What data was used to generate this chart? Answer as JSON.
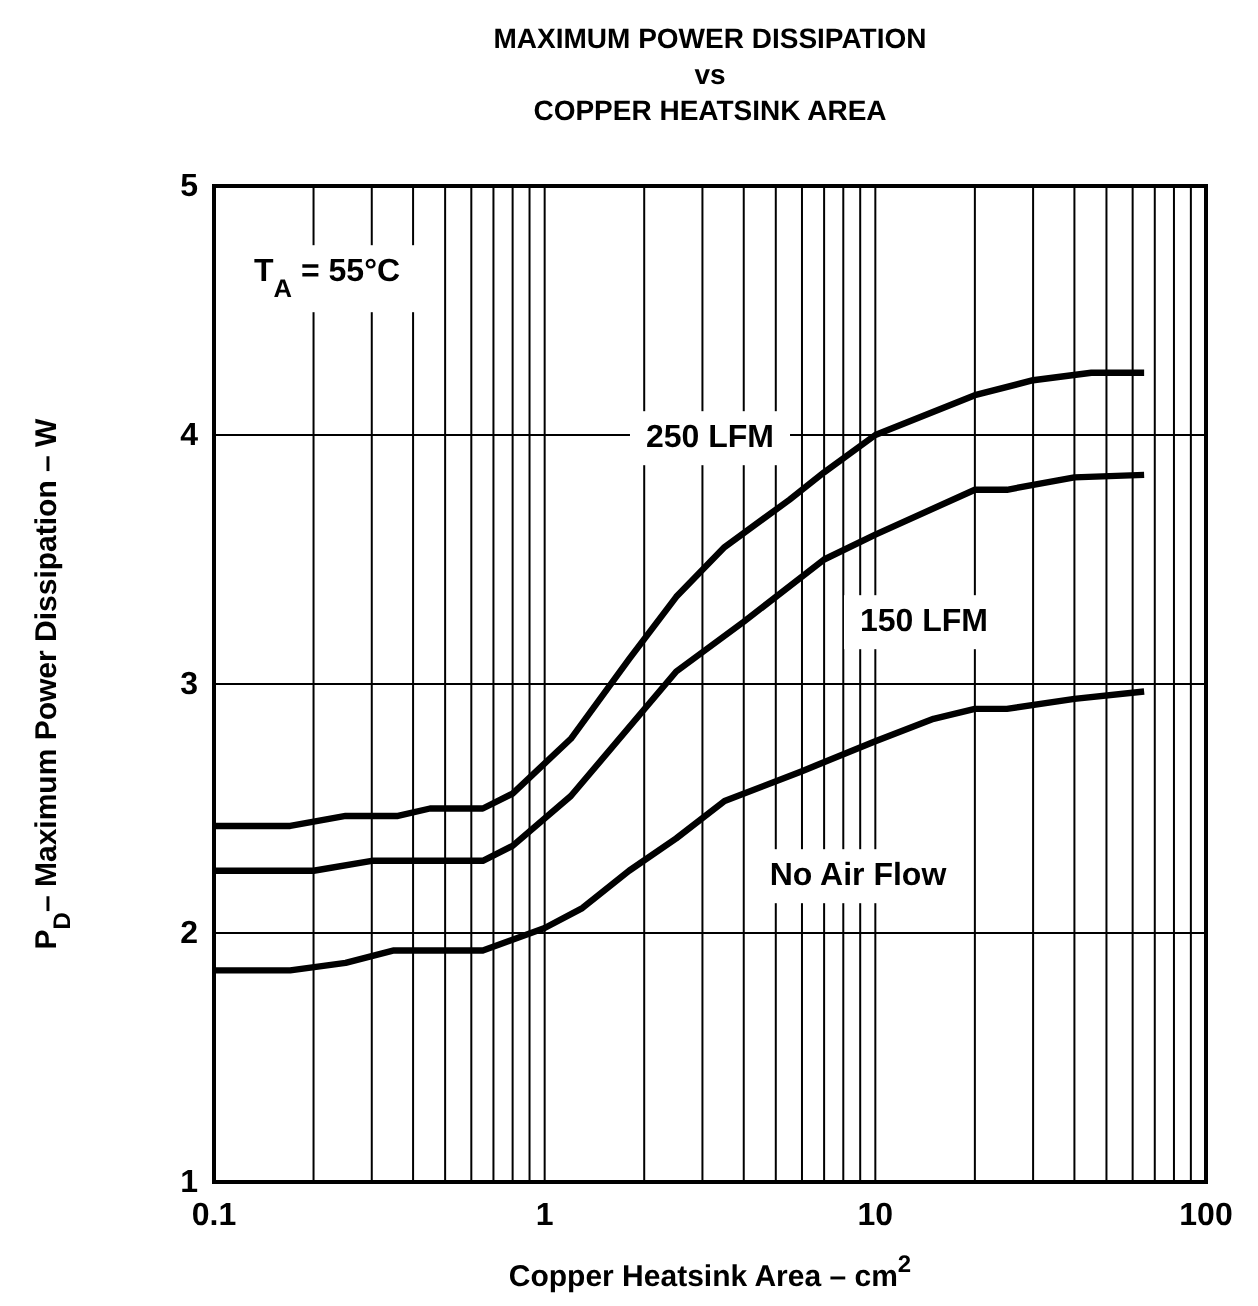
{
  "chart_data": {
    "type": "line",
    "title": "MAXIMUM POWER DISSIPATION\nvs\nCOPPER HEATSINK AREA",
    "xlabel": "Copper Heatsink Area – cm$^{2}$",
    "ylabel": "P$_{D}$– Maximum Power Dissipation – W",
    "log": "x",
    "grid": true,
    "marker": "none",
    "line_style": "solid",
    "xlim": [
      0.1,
      100
    ],
    "ylim": [
      1,
      5
    ],
    "xticks": [
      0.1,
      {
        "value": 0.2,
        "label": null
      },
      {
        "value": 0.3,
        "label": null
      },
      {
        "value": 0.4,
        "label": null
      },
      {
        "value": 0.5,
        "label": null
      },
      {
        "value": 0.6,
        "label": null
      },
      {
        "value": 0.7,
        "label": null
      },
      {
        "value": 0.8,
        "label": null
      },
      {
        "value": 0.9,
        "label": null
      },
      1,
      {
        "value": 2,
        "label": null
      },
      {
        "value": 3,
        "label": null
      },
      {
        "value": 4,
        "label": null
      },
      {
        "value": 5,
        "label": null
      },
      {
        "value": 6,
        "label": null
      },
      {
        "value": 7,
        "label": null
      },
      {
        "value": 8,
        "label": null
      },
      {
        "value": 9,
        "label": null
      },
      10,
      {
        "value": 20,
        "label": null
      },
      {
        "value": 30,
        "label": null
      },
      {
        "value": 40,
        "label": null
      },
      {
        "value": 50,
        "label": null
      },
      {
        "value": 60,
        "label": null
      },
      {
        "value": 70,
        "label": null
      },
      {
        "value": 80,
        "label": null
      },
      {
        "value": 90,
        "label": null
      },
      100
    ],
    "yticks": [
      1,
      2,
      3,
      4,
      5
    ],
    "annotations": [
      "T$_{A}$ = 55°C",
      "250 LFM",
      "150 LFM",
      "No Air Flow"
    ],
    "series": [
      {
        "color": "#000000",
        "x": [
          0.1,
          0.17,
          0.25,
          0.36,
          0.45,
          0.65,
          0.8,
          1.2,
          1.8,
          2.5,
          3.5,
          5.5,
          7,
          10,
          20,
          30,
          45,
          65
        ],
        "values": [
          2.43,
          2.43,
          2.47,
          2.47,
          2.5,
          2.5,
          2.56,
          2.78,
          3.1,
          3.35,
          3.55,
          3.74,
          3.85,
          4.0,
          4.16,
          4.22,
          4.25,
          4.25
        ]
      },
      {
        "color": "#000000",
        "x": [
          0.1,
          0.2,
          0.3,
          0.65,
          0.8,
          1.2,
          2.5,
          4,
          7,
          10,
          20,
          25,
          40,
          65
        ],
        "values": [
          2.25,
          2.25,
          2.29,
          2.29,
          2.35,
          2.55,
          3.05,
          3.25,
          3.5,
          3.6,
          3.78,
          3.78,
          3.83,
          3.84
        ]
      },
      {
        "color": "#000000",
        "x": [
          0.1,
          0.17,
          0.25,
          0.35,
          0.65,
          1.0,
          1.3,
          1.8,
          2.5,
          3.5,
          6,
          10,
          15,
          20,
          25,
          40,
          65
        ],
        "values": [
          1.85,
          1.85,
          1.88,
          1.93,
          1.93,
          2.02,
          2.1,
          2.25,
          2.38,
          2.53,
          2.65,
          2.77,
          2.86,
          2.9,
          2.9,
          2.94,
          2.97
        ]
      }
    ]
  }
}
